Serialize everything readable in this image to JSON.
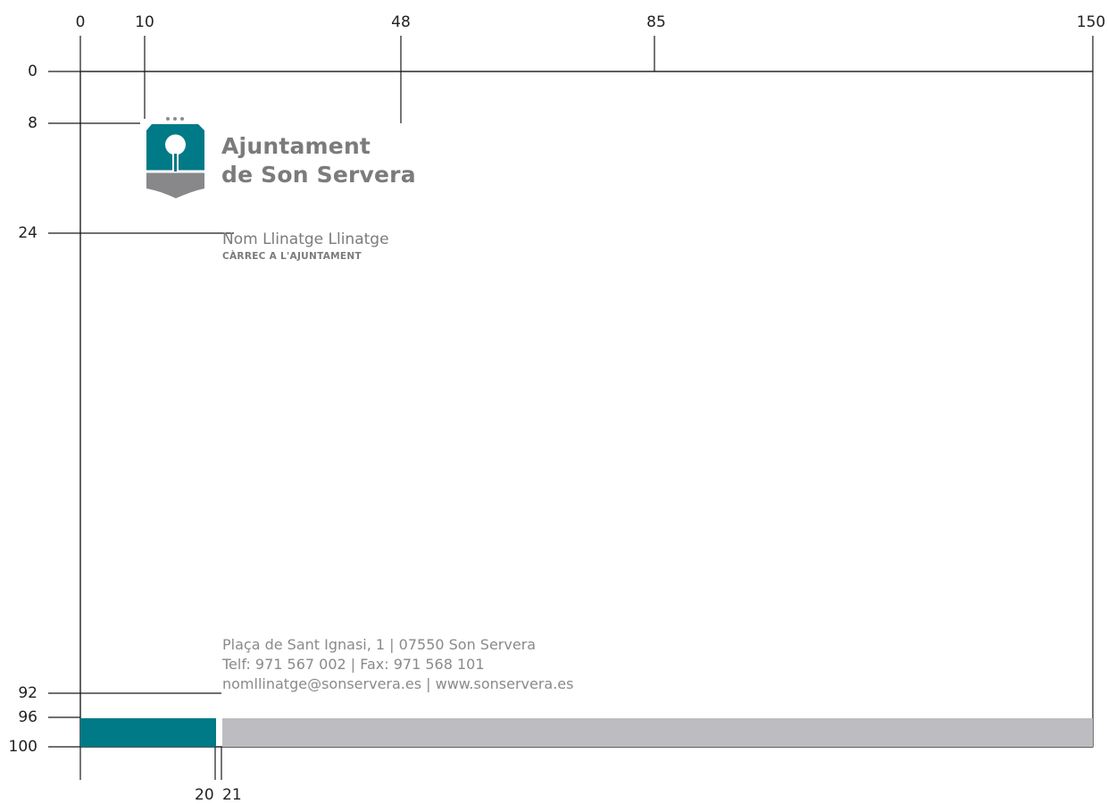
{
  "axis_top": [
    "0",
    "10",
    "48",
    "85",
    "150"
  ],
  "axis_left": [
    "0",
    "8",
    "24",
    "92",
    "96",
    "100"
  ],
  "axis_bottom": [
    "20",
    "21"
  ],
  "organization": {
    "line1": "Ajuntament",
    "line2": "de Son Servera"
  },
  "person": {
    "name": "Nom Llinatge Llinatge",
    "role": "CÀRREC A L'AJUNTAMENT"
  },
  "contact": {
    "address": "Plaça de Sant Ignasi, 1 | 07550 Son Servera",
    "phone": "Telf: 971 567 002 | Fax: 971 568 101",
    "web": "nomllinatge@sonservera.es | www.sonservera.es"
  },
  "colors": {
    "teal": "#007a87",
    "grey_bar": "#bdbcc0",
    "text_grey": "#7b7b7d"
  },
  "logo_icon": "shield-with-tree-icon"
}
